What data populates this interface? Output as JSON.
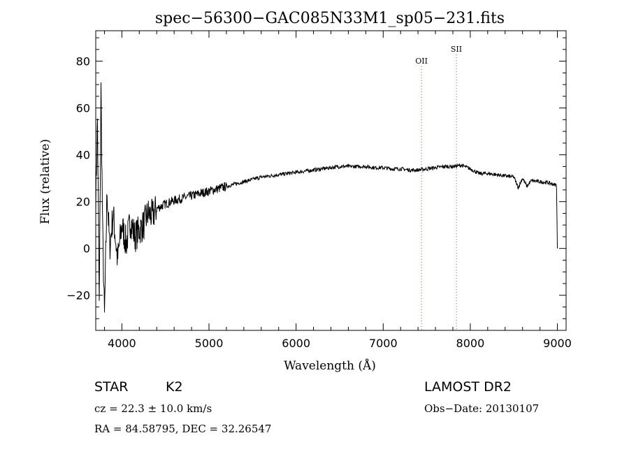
{
  "chart_data": {
    "type": "line",
    "title": "spec−56300−GAC085N33M1_sp05−231.fits",
    "xlabel": "Wavelength (Å)",
    "ylabel": "Flux (relative)",
    "xlim": [
      3700,
      9100
    ],
    "ylim": [
      -35,
      93
    ],
    "xticks": [
      4000,
      5000,
      6000,
      7000,
      8000,
      9000
    ],
    "yticks": [
      -20,
      0,
      20,
      40,
      60,
      80
    ],
    "xtick_labels": [
      "4000",
      "5000",
      "6000",
      "7000",
      "8000",
      "9000"
    ],
    "ytick_labels": [
      "−20",
      "0",
      "20",
      "40",
      "60",
      "80"
    ],
    "series": [
      {
        "color": "#000000",
        "x": [
          3700,
          3720,
          3740,
          3760,
          3780,
          3800,
          3830,
          3860,
          3900,
          3950,
          4000,
          4050,
          4100,
          4150,
          4200,
          4250,
          4300,
          4350,
          4400,
          4500,
          4600,
          4700,
          4800,
          4900,
          5000,
          5100,
          5200,
          5300,
          5400,
          5500,
          5600,
          5700,
          5800,
          5900,
          6000,
          6100,
          6200,
          6300,
          6400,
          6500,
          6600,
          6700,
          6800,
          6900,
          7000,
          7100,
          7200,
          7300,
          7400,
          7500,
          7600,
          7700,
          7800,
          7900,
          8000,
          8100,
          8200,
          8300,
          8400,
          8500,
          8550,
          8600,
          8650,
          8700,
          8800,
          8900,
          8990,
          9000
        ],
        "y": [
          20,
          55,
          -25,
          68,
          5,
          -30,
          25,
          0,
          15,
          -5,
          10,
          2,
          12,
          5,
          8,
          10,
          15,
          14,
          17,
          19,
          20.5,
          21.5,
          22.5,
          23.5,
          24.5,
          25.5,
          26.5,
          27.5,
          28.5,
          29.5,
          30.5,
          31,
          31.5,
          32,
          32.5,
          33,
          33.5,
          34,
          34.5,
          35,
          35,
          35,
          35,
          34.5,
          34.5,
          34,
          34,
          33.5,
          33.5,
          34,
          34.5,
          35,
          35,
          35.5,
          34,
          32,
          32,
          31.5,
          31,
          30.5,
          26,
          30,
          26.5,
          29,
          28.5,
          28,
          27,
          0
        ]
      }
    ],
    "annotations": [
      {
        "label": "OII",
        "x": 7440,
        "label_y": 79
      },
      {
        "label": "SII",
        "x": 7840,
        "label_y": 84
      }
    ]
  },
  "info": {
    "object_type": "STAR",
    "subclass": "K2",
    "survey": "LAMOST DR2",
    "cz": "cz = 22.3 ± 10.0 km/s",
    "obs_date": "Obs−Date: 20130107",
    "coords": "RA =  84.58795, DEC =  32.26547"
  }
}
